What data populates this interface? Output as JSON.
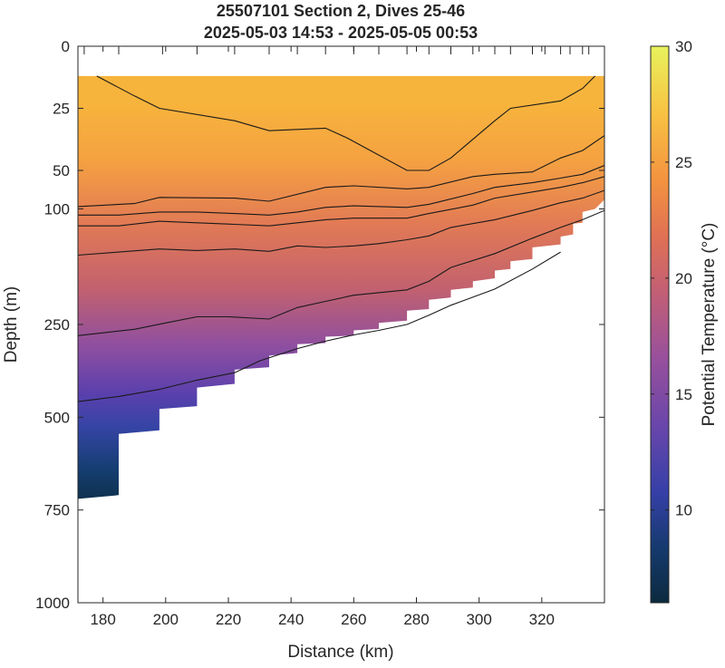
{
  "chart_data": {
    "type": "heatmap",
    "title_line1": "25507101 Section 2, Dives 25-46",
    "title_line2": "2025-05-03 14:53 - 2025-05-05 00:53",
    "xlabel": "Distance (km)",
    "ylabel": "Depth (m)",
    "colorbar_label": "Potential Temperature (°C)",
    "xlim": [
      172,
      340
    ],
    "ylim": [
      0,
      1000
    ],
    "y_scale": "piecewise: 0 to 50 m, 50 to 250 m, 250 to 1000 m",
    "grid": false,
    "colormap": "thermal (dark navy - blue - purple - pink - orange - yellow)",
    "clim": [
      6,
      30
    ],
    "x_ticks": [
      "180",
      "200",
      "220",
      "240",
      "260",
      "280",
      "300",
      "320"
    ],
    "y_ticks": [
      "0",
      "25",
      "50",
      "100",
      "250",
      "500",
      "750",
      "1000"
    ],
    "colorbar_ticks": [
      "10",
      "15",
      "20",
      "25",
      "30"
    ],
    "colors": {
      "deep": "#0b2a40",
      "blue": "#3a3ea6",
      "purple": "#8a4ea2",
      "pink": "#d76a6c",
      "orange": "#f6a73f",
      "yellow": "#e8f25b",
      "contour": "#1a1a1a"
    },
    "dive_markers_km": [
      174,
      185,
      199,
      210,
      222,
      233,
      242,
      251,
      260,
      268,
      277,
      284,
      291,
      298,
      305,
      310,
      317,
      321,
      326,
      329,
      333,
      335
    ],
    "section_top_depth_m": 12,
    "section_bottom": {
      "distance_km": [
        172,
        185,
        185,
        198,
        198,
        210,
        210,
        222,
        222,
        233,
        233,
        242,
        242,
        251,
        251,
        260,
        260,
        268,
        268,
        277,
        277,
        284,
        284,
        291,
        291,
        298,
        298,
        305,
        305,
        310,
        310,
        317,
        317,
        326,
        326,
        330,
        330,
        333,
        333,
        337,
        340
      ],
      "depth_m": [
        720,
        710,
        545,
        535,
        478,
        470,
        420,
        410,
        372,
        365,
        334,
        327,
        303,
        300,
        283,
        280,
        266,
        262,
        248,
        245,
        232,
        230,
        218,
        215,
        205,
        202,
        194,
        190,
        180,
        178,
        168,
        165,
        150,
        146,
        136,
        133,
        119,
        118,
        104,
        100,
        88
      ]
    },
    "contours": [
      {
        "distance_km": [
          178,
          190,
          198,
          222,
          233,
          251,
          258,
          277,
          284,
          291,
          305,
          310,
          326,
          333,
          337
        ],
        "depth_m": [
          12,
          20,
          25,
          30,
          34,
          33,
          37,
          50,
          50,
          45,
          30,
          25,
          22,
          17,
          12
        ]
      },
      {
        "distance_km": [
          172,
          190,
          198,
          222,
          233,
          251,
          260,
          277,
          284,
          298,
          305,
          317,
          326,
          333,
          340
        ],
        "depth_m": [
          97,
          93,
          85,
          86,
          90,
          72,
          70,
          74,
          72,
          58,
          55,
          52,
          45,
          42,
          36
        ]
      },
      {
        "distance_km": [
          172,
          185,
          198,
          210,
          222,
          233,
          242,
          251,
          260,
          277,
          284,
          298,
          305,
          317,
          326,
          333,
          340
        ],
        "depth_m": [
          108,
          108,
          104,
          104,
          106,
          108,
          104,
          98,
          96,
          98,
          94,
          80,
          72,
          66,
          60,
          55,
          48
        ]
      },
      {
        "distance_km": [
          172,
          185,
          198,
          210,
          222,
          233,
          242,
          251,
          260,
          277,
          284,
          298,
          305,
          317,
          326,
          333,
          340
        ],
        "depth_m": [
          122,
          122,
          116,
          118,
          120,
          122,
          118,
          114,
          112,
          112,
          106,
          95,
          86,
          78,
          72,
          66,
          58
        ]
      },
      {
        "distance_km": [
          172,
          185,
          198,
          210,
          222,
          233,
          242,
          251,
          260,
          268,
          277,
          284,
          291,
          305,
          317,
          326,
          333,
          340
        ],
        "depth_m": [
          160,
          156,
          152,
          154,
          152,
          155,
          148,
          150,
          148,
          145,
          140,
          135,
          124,
          114,
          102,
          92,
          86,
          76
        ]
      },
      {
        "distance_km": [
          172,
          190,
          200,
          210,
          220,
          233,
          242,
          251,
          260,
          277,
          284,
          291,
          305,
          317,
          326,
          333,
          340
        ],
        "depth_m": [
          280,
          263,
          248,
          240,
          240,
          243,
          228,
          220,
          212,
          205,
          194,
          176,
          158,
          138,
          124,
          114,
          102
        ]
      },
      {
        "distance_km": [
          172,
          185,
          198,
          210,
          222,
          230,
          242,
          251,
          260,
          268,
          277,
          284,
          291,
          305,
          317,
          326
        ],
        "depth_m": [
          458,
          444,
          425,
          400,
          380,
          348,
          315,
          295,
          278,
          266,
          250,
          238,
          225,
          204,
          178,
          156
        ]
      }
    ]
  }
}
